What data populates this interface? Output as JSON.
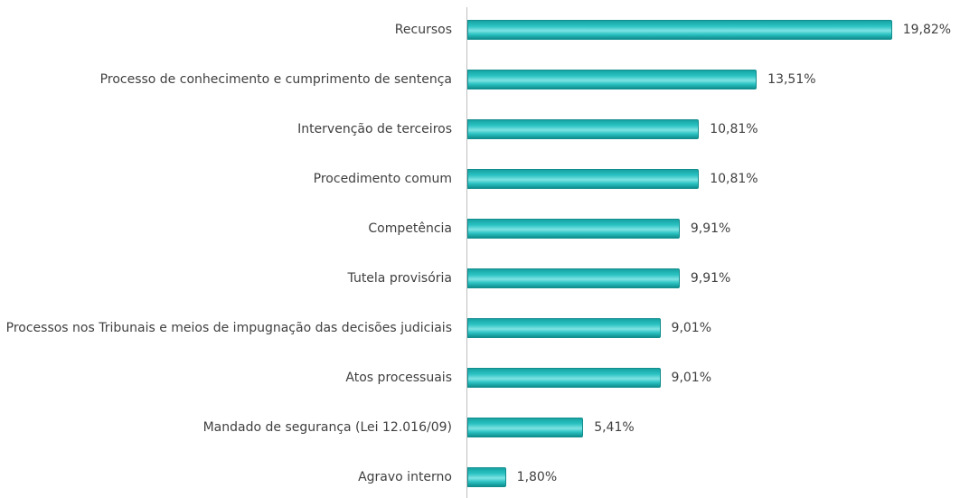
{
  "chart_data": {
    "type": "bar",
    "orientation": "horizontal",
    "color": "#2cc3c3",
    "categories": [
      "Recursos",
      "Processo de conhecimento e cumprimento de sentença",
      "Intervenção de terceiros",
      "Procedimento comum",
      "Competência",
      "Tutela provisória",
      "Processos nos Tribunais e meios de impugnação das decisões judiciais",
      "Atos processuais",
      "Mandado de segurança (Lei 12.016/09)",
      "Agravo interno"
    ],
    "values": [
      19.82,
      13.51,
      10.81,
      10.81,
      9.91,
      9.91,
      9.01,
      9.01,
      5.41,
      1.8
    ],
    "value_labels": [
      "19,82%",
      "13,51%",
      "10,81%",
      "10,81%",
      "9,91%",
      "9,91%",
      "9,01%",
      "9,01%",
      "5,41%",
      "1,80%"
    ]
  }
}
